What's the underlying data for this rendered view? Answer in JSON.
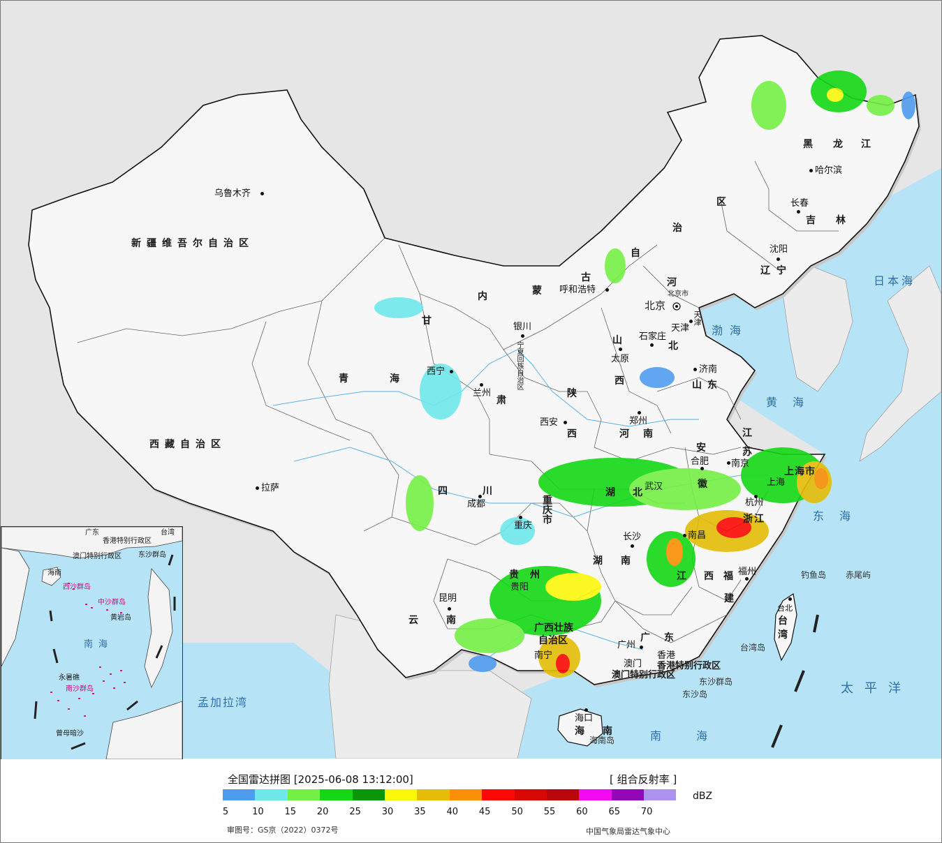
{
  "legend": {
    "title": "全国雷达拼图 [2025-06-08 13:12:00]",
    "product": "[ 组合反射率 ]",
    "unit": "dBZ",
    "ticks": [
      "5",
      "10",
      "15",
      "20",
      "25",
      "30",
      "35",
      "40",
      "45",
      "50",
      "55",
      "60",
      "65",
      "70"
    ],
    "colors": [
      "#4f9cef",
      "#6ee8ea",
      "#74f045",
      "#14d815",
      "#0a9608",
      "#fbf70b",
      "#e5bd07",
      "#fb8f05",
      "#fb0a05",
      "#d80806",
      "#ba0609",
      "#f409f3",
      "#9407b7",
      "#ad92ef"
    ]
  },
  "footer": {
    "approval": "审图号：GS京（2022）0372号",
    "agency": "中国气象局雷达气象中心"
  },
  "provinces": {
    "xinjiang": "新疆维吾尔自治区",
    "xizang": "西藏自治区",
    "qinghai_1": "青",
    "qinghai_2": "海",
    "gansu_1": "甘",
    "gansu_2": "肃",
    "neimenggu_1": "内",
    "neimenggu_2": "蒙",
    "neimenggu_3": "古",
    "neimenggu_4": "自",
    "neimenggu_5": "治",
    "neimenggu_6": "区",
    "heilongjiang_1": "黑",
    "heilongjiang_2": "龙",
    "heilongjiang_3": "江",
    "jilin_1": "吉",
    "jilin_2": "林",
    "liaoning_1": "辽",
    "liaoning_2": "宁",
    "hebei_1": "河",
    "hebei_2": "北",
    "shanxi_1": "山",
    "shanxi_2": "西",
    "shaanxi_1": "陕",
    "shaanxi_2": "西",
    "ningxia": "宁夏回族自治区",
    "shandong": "山东",
    "henan": "河南",
    "jiangsu_1": "江",
    "jiangsu_2": "苏",
    "anhui_1": "安",
    "anhui_2": "徽",
    "hubei_1": "湖",
    "hubei_2": "北",
    "sichuan": "四川",
    "chongqing": "重庆市",
    "zhejiang": "浙江",
    "jiangxi_1": "江",
    "jiangxi_2": "西",
    "hunan_1": "湖",
    "hunan_2": "南",
    "guizhou": "贵州",
    "yunnan": "云南",
    "guangxi_1": "广西壮族",
    "guangxi_2": "自治区",
    "guangdong": "广东",
    "fujian_1": "福",
    "fujian_2": "建",
    "taiwan_1": "台",
    "taiwan_2": "湾",
    "hainan_1": "海",
    "hainan_2": "南",
    "shanghai": "上海市",
    "beijing": "北京",
    "beijing_small": "北京市",
    "tianjin": "天津",
    "hongkong": "香港特别行政区",
    "macau": "澳门特别行政区"
  },
  "cities": {
    "urumqi": "乌鲁木齐",
    "lhasa": "拉萨",
    "xining": "西宁",
    "lanzhou": "兰州",
    "yinchuan": "银川",
    "hohhot": "呼和浩特",
    "harbin": "哈尔滨",
    "changchun": "长春",
    "shenyang": "沈阳",
    "shijiazhuang": "石家庄",
    "taiyuan": "太原",
    "jinan": "济南",
    "zhengzhou": "郑州",
    "xian": "西安",
    "hefei": "合肥",
    "nanjing": "南京",
    "shanghai": "上海",
    "hangzhou": "杭州",
    "wuhan": "武汉",
    "chengdu": "成都",
    "chongqing": "重庆",
    "changsha": "长沙",
    "nanchang": "南昌",
    "fuzhou": "福州",
    "guiyang": "贵阳",
    "kunming": "昆明",
    "nanning": "南宁",
    "guangzhou": "广州",
    "macau": "澳门",
    "hongkong": "香港",
    "haikou": "海口",
    "taipei": "台北",
    "tianjin": "天津"
  },
  "seas": {
    "bohai": "渤海",
    "huanghai": "黄海",
    "donghai": "东海",
    "nanhai": "南海",
    "taipingyang": "太平洋",
    "ribenhai": "日本海",
    "mengjialawan": "孟加拉湾"
  },
  "islands": {
    "diaoyudao": "钓鱼岛",
    "chiweiyu": "赤尾屿",
    "taiwandao": "台湾岛",
    "dongshaqundao": "东沙群岛",
    "dongshadao": "东沙岛",
    "hainandao": "海南岛"
  },
  "inset": {
    "guangdong": "广东",
    "taiwan": "台湾",
    "hongkong": "香港特别行政区",
    "macau": "澳门特别行政区",
    "dongsha": "东沙群岛",
    "hainan": "海南",
    "xisha": "西沙群岛",
    "zhongsha": "中沙群岛",
    "huangyandao": "黄岩岛",
    "nanhai": "南海",
    "nansha": "南沙群岛",
    "yongshujiao": "永暑礁",
    "zengmuansha": "曾母暗沙"
  }
}
